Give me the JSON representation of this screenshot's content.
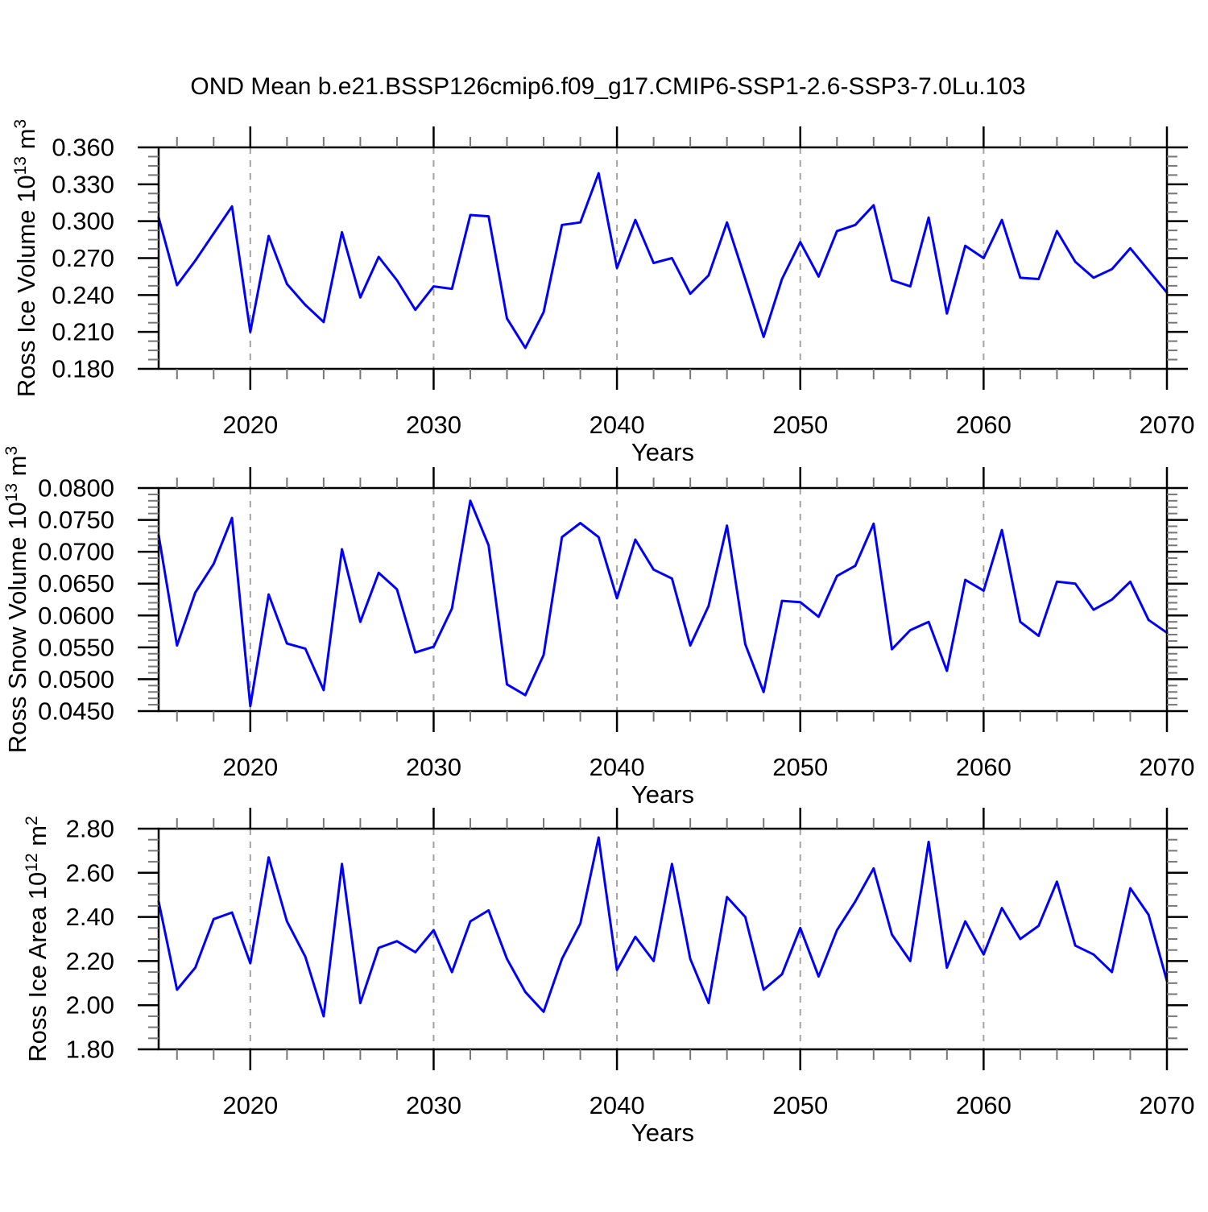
{
  "title": "OND Mean b.e21.BSSP126cmip6.f09_g17.CMIP6-SSP1-2.6-SSP3-7.0Lu.103",
  "colors": {
    "line": "#0000ff",
    "grid": "#a3a3a3",
    "frame": "#000000",
    "major_tick": "#000000",
    "minor_tick": "#777777"
  },
  "x_axis": {
    "label": "Years",
    "start": 2015,
    "end": 2070,
    "major_ticks": [
      2020,
      2030,
      2040,
      2050,
      2060,
      2070
    ],
    "minor_interval": 2,
    "gridline_years": [
      2020,
      2030,
      2040,
      2050,
      2060
    ]
  },
  "chart_data": [
    {
      "type": "line",
      "ylabel": "Ross Ice Volume 10^{13} m^{3}",
      "ylim": [
        0.18,
        0.36
      ],
      "yticks": [
        "0.180",
        "0.210",
        "0.240",
        "0.270",
        "0.300",
        "0.330",
        "0.360"
      ],
      "y_minor_per_major": 3,
      "x_start": 2015,
      "x_step": 1,
      "values": [
        0.303,
        0.248,
        0.268,
        0.29,
        0.312,
        0.21,
        0.288,
        0.249,
        0.232,
        0.218,
        0.291,
        0.238,
        0.271,
        0.252,
        0.228,
        0.247,
        0.245,
        0.305,
        0.304,
        0.221,
        0.197,
        0.226,
        0.297,
        0.299,
        0.339,
        0.262,
        0.301,
        0.266,
        0.27,
        0.241,
        0.256,
        0.299,
        0.253,
        0.206,
        0.253,
        0.283,
        0.255,
        0.292,
        0.297,
        0.313,
        0.252,
        0.247,
        0.303,
        0.225,
        0.28,
        0.27,
        0.301,
        0.254,
        0.253,
        0.292,
        0.267,
        0.254,
        0.261,
        0.278,
        0.26,
        0.242
      ]
    },
    {
      "type": "line",
      "ylabel": "Ross Snow Volume 10^{13} m^{3}",
      "ylim": [
        0.045,
        0.08
      ],
      "yticks": [
        "0.0450",
        "0.0500",
        "0.0550",
        "0.0600",
        "0.0650",
        "0.0700",
        "0.0750",
        "0.0800"
      ],
      "y_minor_per_major": 4,
      "x_start": 2015,
      "x_step": 1,
      "values": [
        0.0726,
        0.0553,
        0.0636,
        0.0681,
        0.0753,
        0.0458,
        0.0633,
        0.0556,
        0.0548,
        0.0483,
        0.0704,
        0.059,
        0.0667,
        0.0641,
        0.0542,
        0.0551,
        0.0611,
        0.078,
        0.071,
        0.0492,
        0.0475,
        0.0538,
        0.0723,
        0.0745,
        0.0723,
        0.0627,
        0.0719,
        0.0672,
        0.0658,
        0.0553,
        0.0615,
        0.0741,
        0.0555,
        0.048,
        0.0623,
        0.0621,
        0.0598,
        0.0662,
        0.0678,
        0.0744,
        0.0547,
        0.0577,
        0.059,
        0.0513,
        0.0656,
        0.0639,
        0.0734,
        0.059,
        0.0568,
        0.0653,
        0.065,
        0.0609,
        0.0625,
        0.0653,
        0.0593,
        0.0573
      ]
    },
    {
      "type": "line",
      "ylabel": "Ross Ice Area 10^{12} m^{2}",
      "ylim": [
        1.8,
        2.8
      ],
      "yticks": [
        "1.80",
        "2.00",
        "2.20",
        "2.40",
        "2.60",
        "2.80"
      ],
      "y_minor_per_major": 3,
      "x_start": 2015,
      "x_step": 1,
      "values": [
        2.47,
        2.07,
        2.17,
        2.39,
        2.42,
        2.19,
        2.67,
        2.38,
        2.22,
        1.95,
        2.64,
        2.01,
        2.26,
        2.29,
        2.24,
        2.34,
        2.15,
        2.38,
        2.43,
        2.21,
        2.06,
        1.97,
        2.21,
        2.37,
        2.76,
        2.16,
        2.31,
        2.2,
        2.64,
        2.21,
        2.01,
        2.49,
        2.4,
        2.07,
        2.14,
        2.35,
        2.13,
        2.34,
        2.47,
        2.62,
        2.32,
        2.2,
        2.74,
        2.17,
        2.38,
        2.23,
        2.44,
        2.3,
        2.36,
        2.56,
        2.27,
        2.23,
        2.15,
        2.53,
        2.41,
        2.11
      ]
    }
  ]
}
